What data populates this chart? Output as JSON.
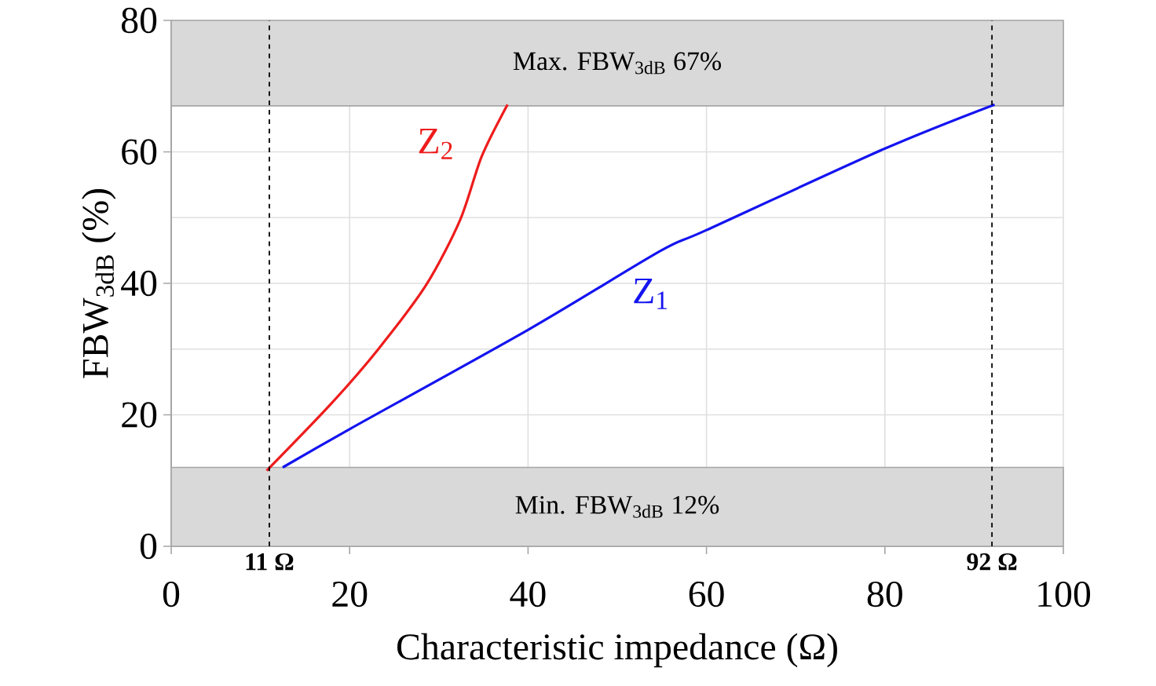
{
  "chart_data": {
    "type": "line",
    "xlabel": "Characteristic impedance (Ω)",
    "ylabel": "FBW$_{3dB}$ (%)",
    "xlim": [
      0,
      100
    ],
    "ylim": [
      0,
      80
    ],
    "xticks": [
      0,
      20,
      40,
      60,
      80,
      100
    ],
    "yticks": [
      0,
      20,
      40,
      60,
      80
    ],
    "grid": true,
    "marker": "none",
    "line_style": "solid",
    "series": [
      {
        "name": "Z$_{1}$",
        "color": "#1414f0",
        "x": [
          12.5,
          20.1,
          40.1,
          54.8,
          60.0,
          80.0,
          92.3
        ],
        "values": [
          12,
          17.9,
          33.0,
          44.9,
          48.1,
          60.5,
          67.2
        ]
      },
      {
        "name": "Z$_{2}$",
        "color": "#ee1c1c",
        "x": [
          10.7,
          17.8,
          23.1,
          28.6,
          32.4,
          34.8,
          37.7
        ],
        "values": [
          11.5,
          21.5,
          29.8,
          39.8,
          49.7,
          59.3,
          67.2
        ]
      }
    ],
    "bands": [
      {
        "axis": "y",
        "from": 0,
        "to": 12,
        "label": "Min. FBW$_{3dB}$ 12%",
        "color": "#d9d9d9"
      },
      {
        "axis": "y",
        "from": 67,
        "to": 80,
        "label": "Max. FBW$_{3dB}$ 67%",
        "color": "#d9d9d9"
      }
    ],
    "ref_lines": [
      {
        "axis": "x",
        "value": 11,
        "label": "11 Ω",
        "color": "#000000",
        "line_style": "dashed"
      },
      {
        "axis": "x",
        "value": 92,
        "label": "92 Ω",
        "color": "#000000",
        "line_style": "dashed"
      }
    ]
  }
}
